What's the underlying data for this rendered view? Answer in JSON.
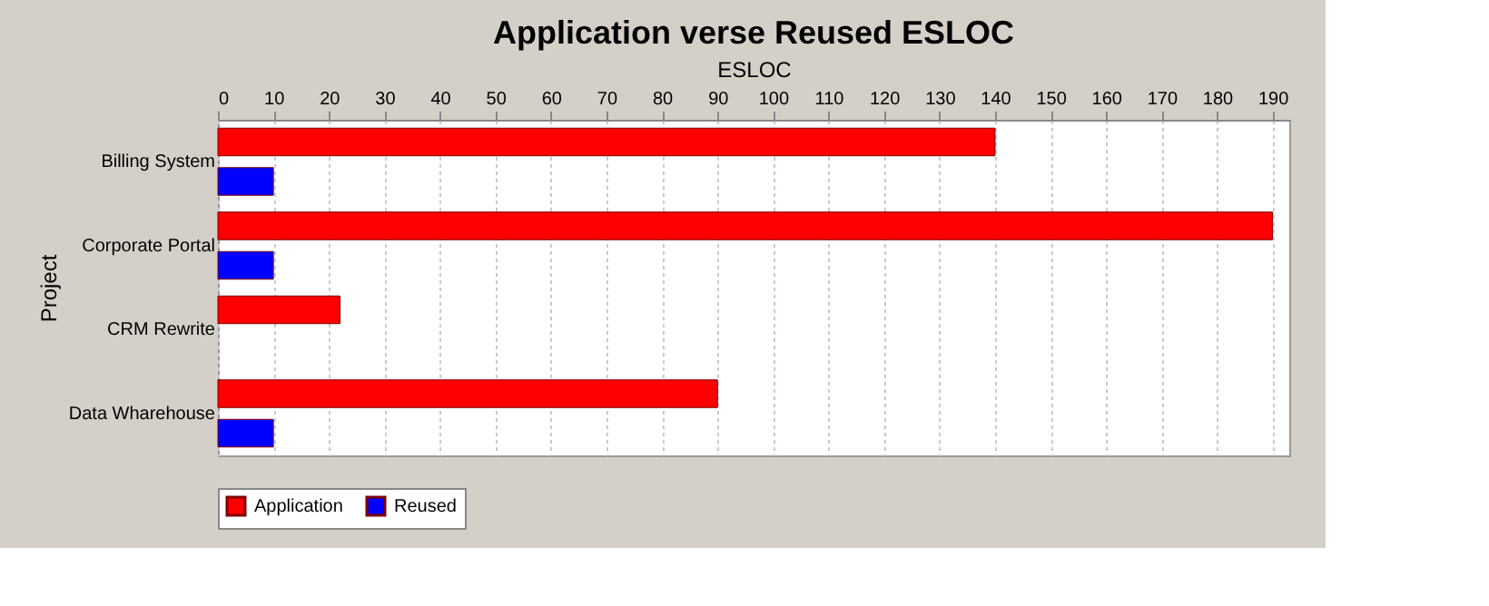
{
  "chart_data": {
    "type": "bar",
    "orientation": "horizontal",
    "title": "Application verse Reused ESLOC",
    "xlabel": "ESLOC",
    "ylabel": "Project",
    "categories": [
      "Billing System",
      "Corporate Portal",
      "CRM Rewrite",
      "Data Wharehouse"
    ],
    "series": [
      {
        "name": "Application",
        "color": "#ff0000",
        "values": [
          140,
          190,
          22,
          90
        ]
      },
      {
        "name": "Reused",
        "color": "#0000ff",
        "values": [
          10,
          10,
          null,
          10
        ]
      }
    ],
    "xlim": [
      0,
      193
    ],
    "xticks": [
      0,
      10,
      20,
      30,
      40,
      50,
      60,
      70,
      80,
      90,
      100,
      110,
      120,
      130,
      140,
      150,
      160,
      170,
      180,
      190
    ],
    "grid": "x",
    "legend": "bottom"
  }
}
